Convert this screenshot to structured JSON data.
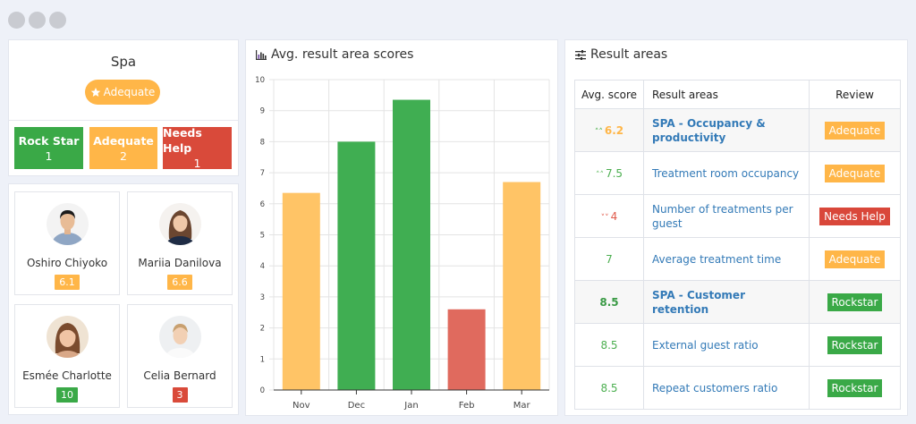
{
  "window": {
    "controls": [
      "close",
      "minimize",
      "maximize"
    ]
  },
  "colors": {
    "green": "#3daa4a",
    "orange": "#ffb648",
    "red": "#d9473a",
    "bar_orange": "#ffc466",
    "bar_green": "#40ae52",
    "bar_red": "#e06a5e",
    "link_blue": "#337ab7"
  },
  "spa": {
    "title": "Spa",
    "badge_label": "Adequate",
    "badge_icon": "star-icon",
    "statuses": [
      {
        "label": "Rock Star",
        "count": "1",
        "color": "#3aa947"
      },
      {
        "label": "Adequate",
        "count": "2",
        "color": "#ffb648"
      },
      {
        "label": "Needs Help",
        "count": "1",
        "color": "#d94a3a"
      }
    ]
  },
  "people": [
    {
      "name": "Oshiro Chiyoko",
      "score": "6.1",
      "score_color": "#ffb648"
    },
    {
      "name": "Mariia Danilova",
      "score": "6.6",
      "score_color": "#ffb648"
    },
    {
      "name": "Esmée Charlotte",
      "score": "10",
      "score_color": "#3aa947"
    },
    {
      "name": "Celia Bernard",
      "score": "3",
      "score_color": "#d94a3a"
    }
  ],
  "chart_panel": {
    "title": "Avg. result area scores",
    "icon": "bar-chart-icon"
  },
  "chart_data": {
    "type": "bar",
    "title": "Avg. result area scores",
    "categories": [
      "Nov",
      "Dec",
      "Jan",
      "Feb",
      "Mar"
    ],
    "values": [
      6.35,
      8.0,
      9.35,
      2.6,
      6.7
    ],
    "bar_colors": [
      "#ffc466",
      "#40ae52",
      "#40ae52",
      "#e06a5e",
      "#ffc466"
    ],
    "xlabel": "",
    "ylabel": "",
    "ylim": [
      0,
      10
    ],
    "yticks": [
      0,
      1,
      2,
      3,
      4,
      5,
      6,
      7,
      8,
      9,
      10
    ],
    "grid": true,
    "legend": "none"
  },
  "result_panel": {
    "title": "Result areas",
    "icon": "sliders-icon",
    "columns": [
      "Avg. score",
      "Result areas",
      "Review"
    ],
    "rows": [
      {
        "score": "6.2",
        "trend": "up",
        "score_color": "#ffb648",
        "area": "SPA - Occupancy & productivity",
        "group": true,
        "review": "Adequate",
        "review_color": "#ffb648"
      },
      {
        "score": "7.5",
        "trend": "up",
        "score_color": "#4caf50",
        "area": "Treatment room occupancy",
        "group": false,
        "review": "Adequate",
        "review_color": "#ffb648"
      },
      {
        "score": "4",
        "trend": "down",
        "score_color": "#e05a4a",
        "area": "Number of treatments per guest",
        "group": false,
        "review": "Needs Help",
        "review_color": "#d9473a"
      },
      {
        "score": "7",
        "trend": "",
        "score_color": "#4caf50",
        "area": "Average treatment time",
        "group": false,
        "review": "Adequate",
        "review_color": "#ffb648"
      },
      {
        "score": "8.5",
        "trend": "",
        "score_color": "#3a9a45",
        "area": "SPA - Customer retention",
        "group": true,
        "review": "Rockstar",
        "review_color": "#3aa947"
      },
      {
        "score": "8.5",
        "trend": "",
        "score_color": "#4caf50",
        "area": "External guest ratio",
        "group": false,
        "review": "Rockstar",
        "review_color": "#3aa947"
      },
      {
        "score": "8.5",
        "trend": "",
        "score_color": "#4caf50",
        "area": "Repeat customers ratio",
        "group": false,
        "review": "Rockstar",
        "review_color": "#3aa947"
      }
    ]
  }
}
